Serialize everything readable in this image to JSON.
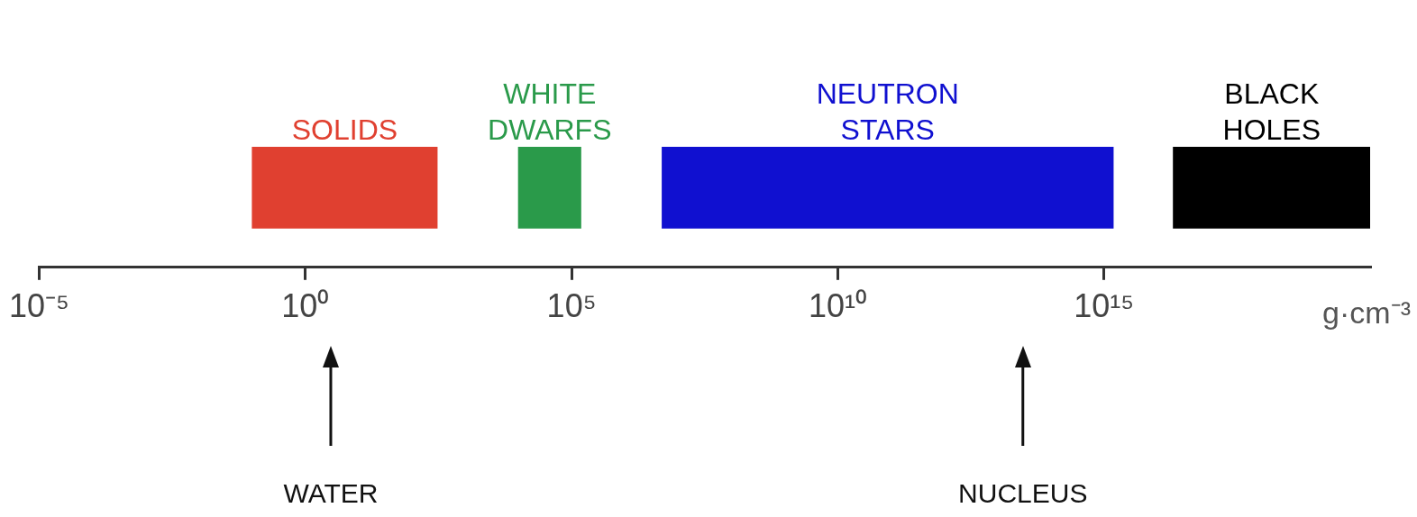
{
  "chart_data": {
    "type": "bar",
    "orientation": "horizontal",
    "log": "x",
    "grid": false,
    "legend": false,
    "tick_labels": "x",
    "xlabel": "g·cm⁻³",
    "categories": [
      null
    ],
    "xlim": [
      1e-05,
      1e+20
    ],
    "xticks": [
      {
        "value": 1e-05,
        "label": "10⁻⁵"
      },
      {
        "value": 1,
        "label": "10⁰"
      },
      {
        "value": 100000.0,
        "label": "10⁵"
      },
      {
        "value": 10000000000.0,
        "label": "10¹⁰"
      },
      {
        "value": 1000000000000000.0,
        "label": "10¹⁵"
      }
    ],
    "series": [
      {
        "name": "SOLIDS",
        "color": "#e04030",
        "base": [
          0.1
        ],
        "values": [
          300
        ]
      },
      {
        "name": "WHITE DWARFS",
        "color": "#2a9a4a",
        "base": [
          10000.0
        ],
        "values": [
          140000.0
        ]
      },
      {
        "name": "NEUTRON STARS",
        "color": "#1010d0",
        "base": [
          5000000.0
        ],
        "values": [
          1500000000000000.0
        ]
      },
      {
        "name": "BLACK HOLES",
        "color": "#000000",
        "base": [
          2e+16
        ],
        "values": [
          9.998e+19
        ]
      }
    ],
    "ref_lines": [
      {
        "axis": "x",
        "value": 3,
        "label": "WATER"
      },
      {
        "axis": "x",
        "value": 30000000000000.0,
        "label": "NUCLEUS"
      }
    ]
  }
}
